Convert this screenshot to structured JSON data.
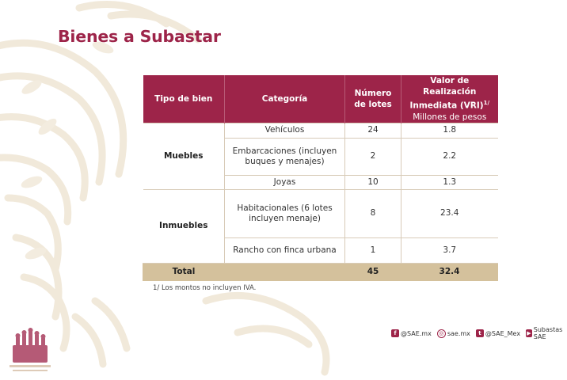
{
  "page": {
    "title": "Bienes a Subastar"
  },
  "table": {
    "headers": {
      "tipo": "Tipo de bien",
      "categoria": "Categoría",
      "numero": "Número de lotes",
      "valor": "Valor de Realización Inmediata (VRI)",
      "valor_sup": "1/",
      "valor_units": "Millones de pesos"
    },
    "groups": [
      {
        "tipo": "Muebles",
        "rows": [
          {
            "categoria": "Vehículos",
            "lotes": "24",
            "valor": "1.8"
          },
          {
            "categoria": "Embarcaciones (incluyen buques y menajes)",
            "lotes": "2",
            "valor": "2.2"
          },
          {
            "categoria": "Joyas",
            "lotes": "10",
            "valor": "1.3"
          }
        ]
      },
      {
        "tipo": "Inmuebles",
        "rows": [
          {
            "categoria": "Habitacionales (6 lotes incluyen menaje)",
            "lotes": "8",
            "valor": "23.4"
          },
          {
            "categoria": "Rancho con finca urbana",
            "lotes": "1",
            "valor": "3.7"
          }
        ]
      }
    ],
    "total": {
      "label": "Total",
      "lotes": "45",
      "valor": "32.4"
    }
  },
  "footnote": "1/ Los montos no incluyen IVA.",
  "social": {
    "facebook": "@SAE.mx",
    "instagram": "sae.mx",
    "twitter": "@SAE_Mex",
    "youtube": "Subastas SAE"
  },
  "colors": {
    "brand": "#9d2449",
    "total_row": "#d4c19c",
    "decor": "#efe6d6"
  }
}
